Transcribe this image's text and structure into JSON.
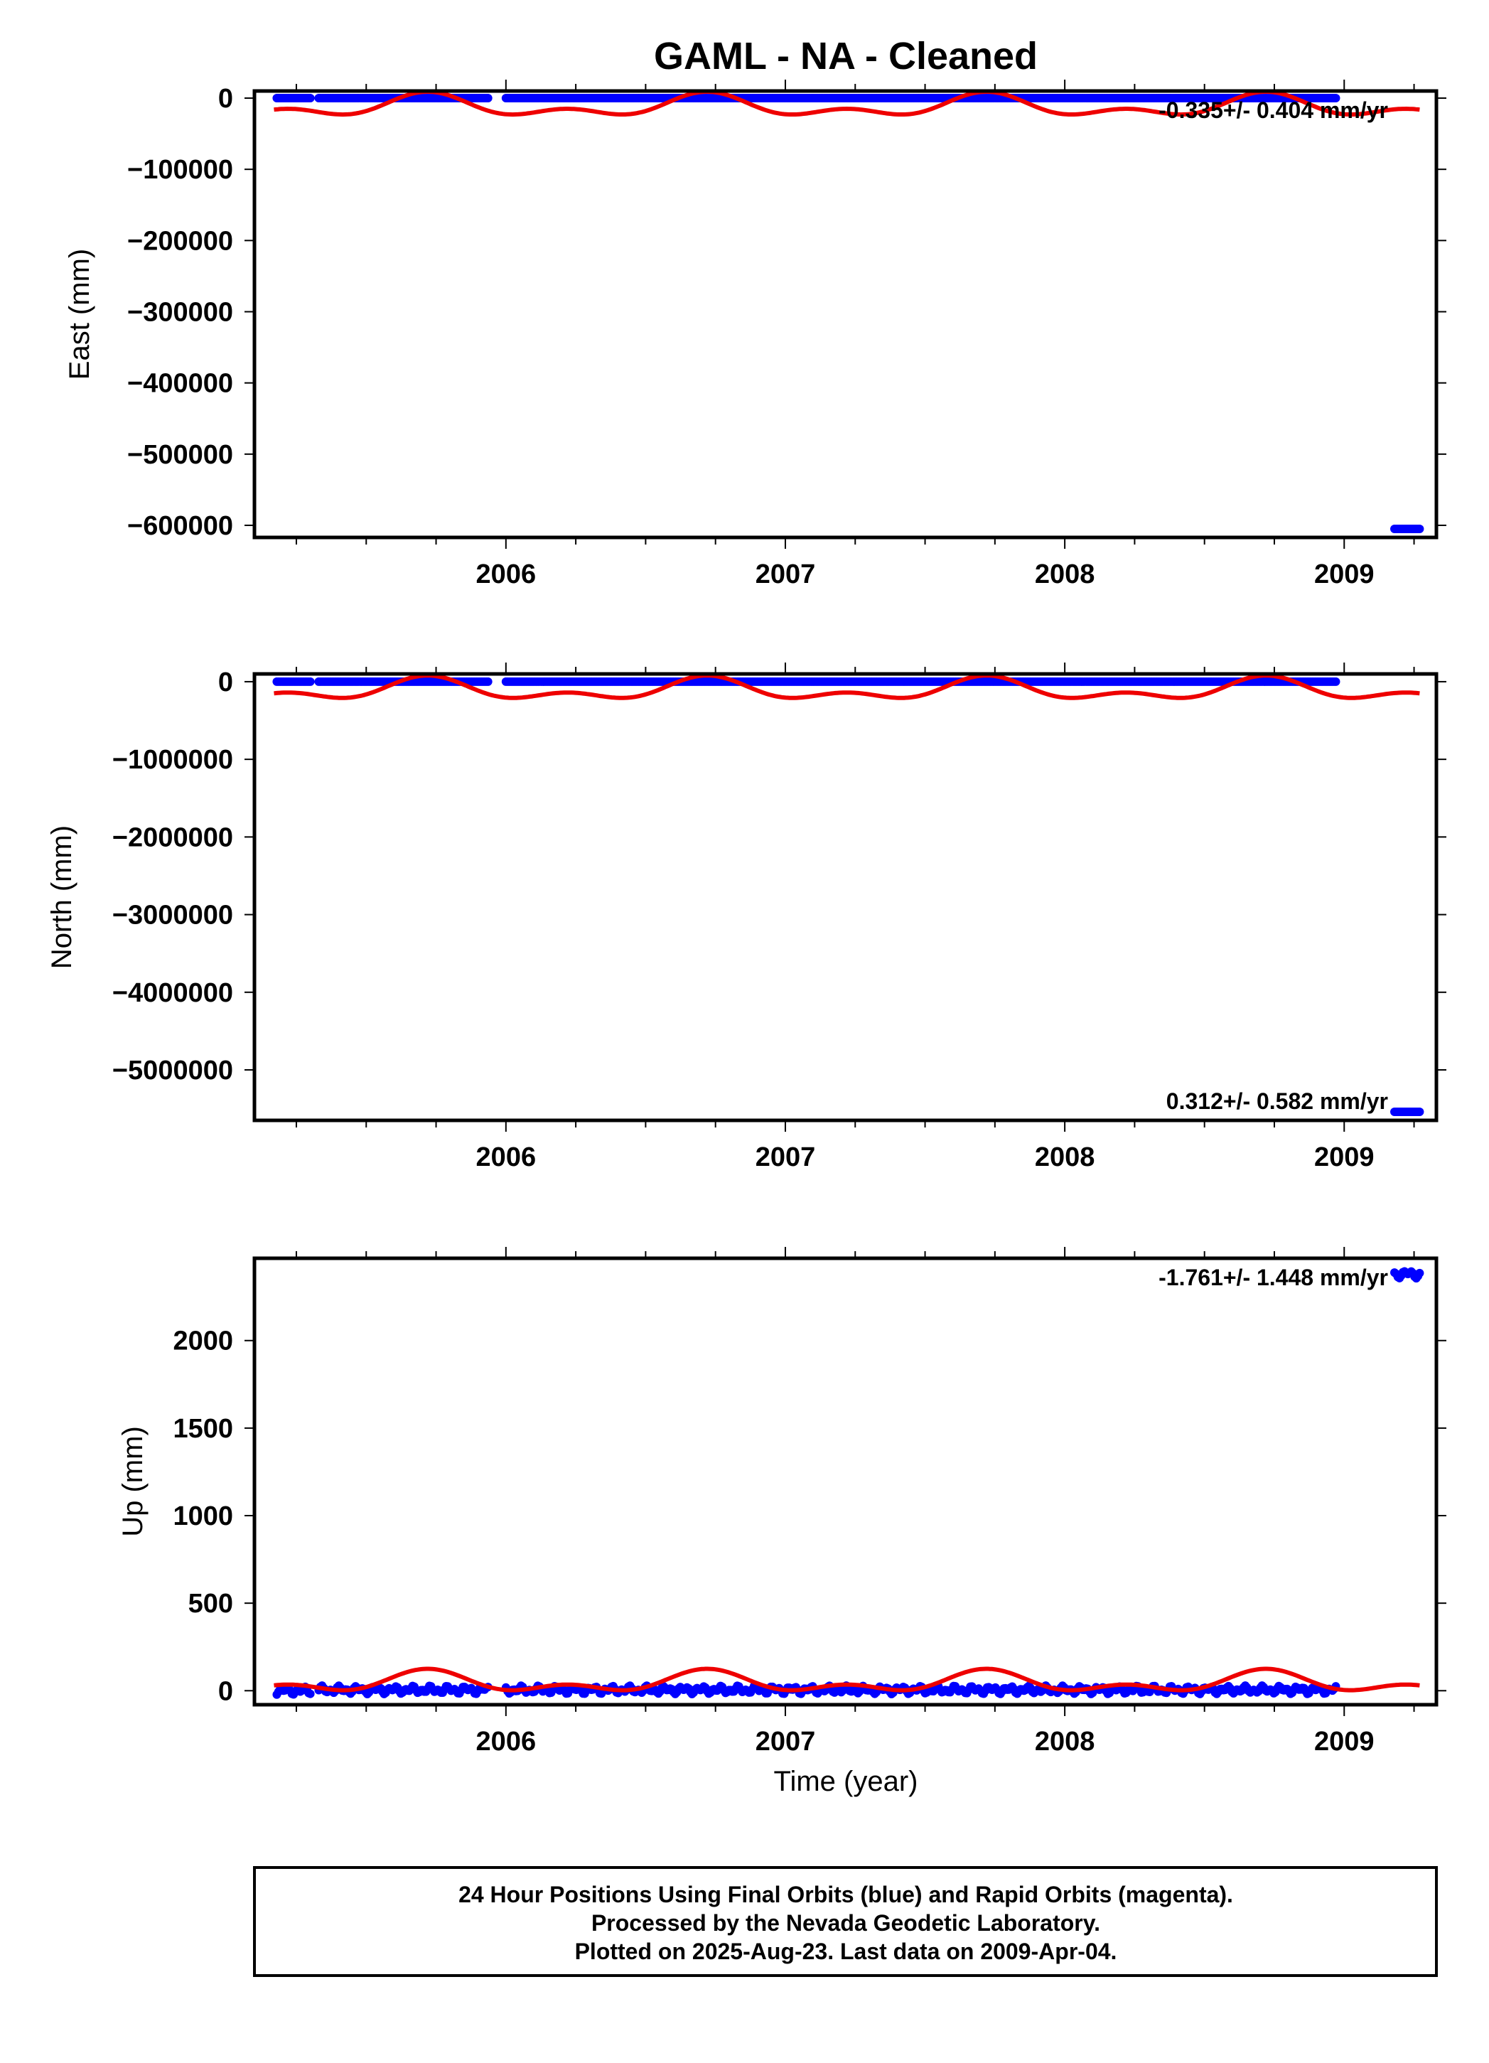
{
  "title": "GAML  - NA - Cleaned",
  "xlabel": "Time (year)",
  "footer": {
    "line1": "24 Hour Positions Using Final Orbits (blue) and Rapid Orbits (magenta).",
    "line2": "Processed by the Nevada Geodetic Laboratory.",
    "line3": "Plotted on 2025-Aug-23. Last data on 2009-Apr-04."
  },
  "colors": {
    "final": "#0000ff",
    "model": "#ee0000",
    "frame": "#000000"
  },
  "chart_data": [
    {
      "type": "scatter",
      "ylabel": "East (mm)",
      "xlim": [
        2005.1,
        2009.33
      ],
      "ylim": [
        -617000,
        10000
      ],
      "xticks": [
        "2006",
        "2007",
        "2008",
        "2009"
      ],
      "yticks": [
        "0",
        "−100000",
        "−200000",
        "−300000",
        "−400000",
        "−500000",
        "−600000"
      ],
      "rate": "-0.335+/- 0.404 mm/yr",
      "rate_pos": "top-right",
      "series": [
        {
          "role": "final",
          "segments": [
            {
              "x": [
                2005.18,
                2005.3
              ],
              "y": 0
            },
            {
              "x": [
                2005.33,
                2005.94
              ],
              "y": 0
            },
            {
              "x": [
                2006.0,
                2008.97
              ],
              "y": 0
            },
            {
              "x": [
                2009.18,
                2009.27
              ],
              "y": -605000
            }
          ]
        },
        {
          "role": "model",
          "x": [
            2005.17,
            2009.27
          ],
          "offset": -12000,
          "annual": 12000,
          "semiannual": 9000,
          "phase_year": 2005.22
        }
      ]
    },
    {
      "type": "scatter",
      "ylabel": "North (mm)",
      "xlim": [
        2005.1,
        2009.33
      ],
      "ylim": [
        -5650000,
        100000
      ],
      "xticks": [
        "2006",
        "2007",
        "2008",
        "2009"
      ],
      "yticks": [
        "0",
        "−1000000",
        "−2000000",
        "−3000000",
        "−4000000",
        "−5000000"
      ],
      "rate": "0.312+/- 0.582 mm/yr",
      "rate_pos": "bottom-right",
      "series": [
        {
          "role": "final",
          "segments": [
            {
              "x": [
                2005.18,
                2005.3
              ],
              "y": 0
            },
            {
              "x": [
                2005.33,
                2005.94
              ],
              "y": 0
            },
            {
              "x": [
                2006.0,
                2008.97
              ],
              "y": 0
            },
            {
              "x": [
                2009.18,
                2009.27
              ],
              "y": -5540000
            }
          ]
        },
        {
          "role": "model",
          "x": [
            2005.17,
            2009.27
          ],
          "offset": -110000,
          "annual": 110000,
          "semiannual": 80000,
          "phase_year": 2005.22
        }
      ]
    },
    {
      "type": "scatter",
      "ylabel": "Up (mm)",
      "xlim": [
        2005.1,
        2009.33
      ],
      "ylim": [
        -80,
        2470
      ],
      "xticks": [
        "2006",
        "2007",
        "2008",
        "2009"
      ],
      "yticks": [
        "0",
        "500",
        "1000",
        "1500",
        "2000"
      ],
      "rate": "-1.761+/- 1.448 mm/yr",
      "rate_pos": "top-right",
      "series": [
        {
          "role": "final",
          "segments": [
            {
              "x": [
                2005.18,
                2005.3
              ],
              "y": 0
            },
            {
              "x": [
                2005.33,
                2005.94
              ],
              "y": 5
            },
            {
              "x": [
                2006.0,
                2008.97
              ],
              "y": 5
            },
            {
              "x": [
                2009.18,
                2009.27
              ],
              "y": 2380
            }
          ]
        },
        {
          "role": "model",
          "x": [
            2005.17,
            2009.27
          ],
          "offset": 45,
          "annual": 45,
          "semiannual": 35,
          "phase_year": 2005.22
        }
      ]
    }
  ]
}
